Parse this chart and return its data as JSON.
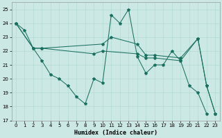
{
  "xlabel": "Humidex (Indice chaleur)",
  "background_color": "#cce8e4",
  "line_color": "#1a7060",
  "xlim": [
    -0.5,
    23.5
  ],
  "ylim": [
    17,
    25.5
  ],
  "yticks": [
    17,
    18,
    19,
    20,
    21,
    22,
    23,
    24,
    25
  ],
  "xticks": [
    0,
    1,
    2,
    3,
    4,
    5,
    6,
    7,
    8,
    9,
    10,
    11,
    12,
    13,
    14,
    15,
    16,
    17,
    18,
    19,
    20,
    21,
    22,
    23
  ],
  "lines": [
    {
      "x": [
        0,
        1,
        2,
        3,
        4,
        5,
        6,
        7,
        8,
        9,
        10,
        11,
        12,
        13,
        14,
        15,
        16,
        17,
        18,
        19,
        20,
        21,
        22
      ],
      "y": [
        24.0,
        23.5,
        22.2,
        21.3,
        20.3,
        20.0,
        19.5,
        18.7,
        18.2,
        20.0,
        19.7,
        24.6,
        24.0,
        25.0,
        21.6,
        20.4,
        21.0,
        21.0,
        22.0,
        21.3,
        19.5,
        19.0,
        17.5
      ]
    },
    {
      "x": [
        0,
        2,
        3,
        10,
        11,
        14,
        15,
        16,
        19,
        21,
        22,
        23
      ],
      "y": [
        24.0,
        22.2,
        22.2,
        22.5,
        23.0,
        22.5,
        21.7,
        21.7,
        21.5,
        22.9,
        19.5,
        17.5
      ]
    },
    {
      "x": [
        0,
        2,
        3,
        9,
        10,
        14,
        15,
        16,
        19,
        21,
        22,
        23
      ],
      "y": [
        24.0,
        22.2,
        22.2,
        21.8,
        22.0,
        21.8,
        21.5,
        21.5,
        21.3,
        22.9,
        19.5,
        17.5
      ]
    }
  ]
}
